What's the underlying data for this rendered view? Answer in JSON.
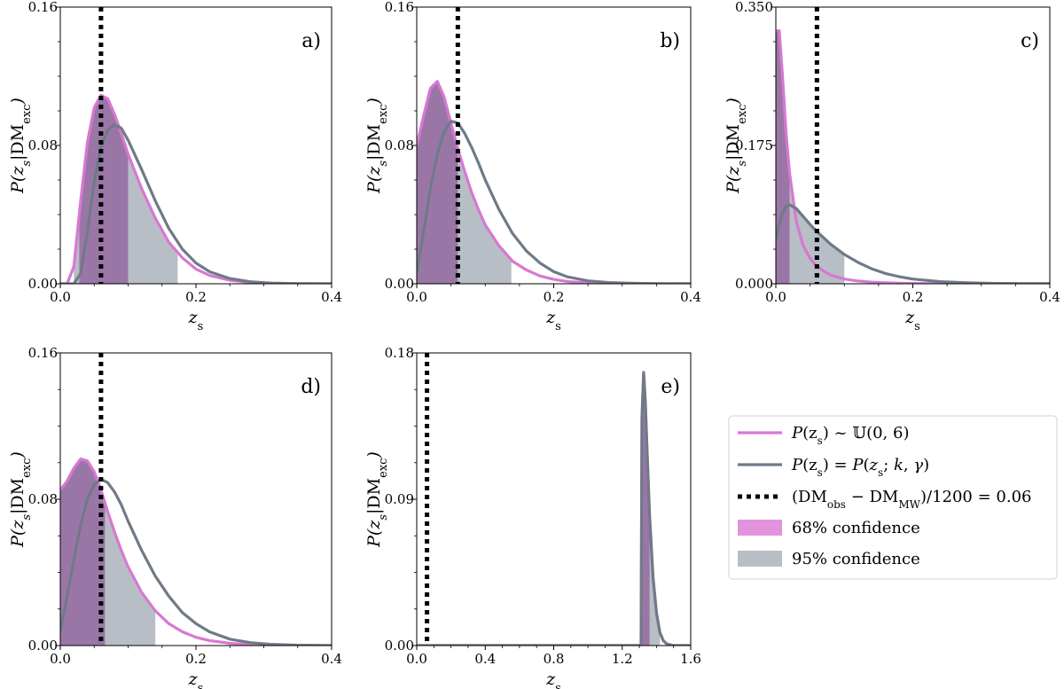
{
  "chart_data": [
    {
      "type": "area",
      "panel_label": "a)",
      "xlabel": "z_s",
      "ylabel": "P(z_s|DM_exc)",
      "xlim": [
        0,
        0.4
      ],
      "ylim": [
        0,
        0.16
      ],
      "xticks": [
        "0.0",
        "0.2",
        "0.4"
      ],
      "yticks": [
        "0.00",
        "0.08",
        "0.16"
      ],
      "vline_x": 0.06,
      "uniform_prior": {
        "x": [
          0.0,
          0.01,
          0.02,
          0.03,
          0.04,
          0.05,
          0.06,
          0.07,
          0.08,
          0.09,
          0.1,
          0.12,
          0.14,
          0.16,
          0.18,
          0.2,
          0.22,
          0.25,
          0.28,
          0.31,
          0.35,
          0.4
        ],
        "y": [
          0.0,
          0.0,
          0.01,
          0.048,
          0.082,
          0.102,
          0.109,
          0.107,
          0.098,
          0.087,
          0.075,
          0.055,
          0.038,
          0.024,
          0.015,
          0.0085,
          0.0048,
          0.002,
          0.0008,
          0.0003,
          0.0001,
          0.0
        ],
        "ci68": [
          0.028,
          0.1
        ],
        "ci95": [
          0.02,
          0.173
        ]
      },
      "fitted_prior": {
        "x": [
          0.0,
          0.01,
          0.02,
          0.03,
          0.04,
          0.05,
          0.06,
          0.07,
          0.08,
          0.09,
          0.1,
          0.12,
          0.14,
          0.16,
          0.18,
          0.2,
          0.22,
          0.25,
          0.28,
          0.31,
          0.35,
          0.4
        ],
        "y": [
          0.0,
          0.0,
          0.0,
          0.006,
          0.03,
          0.059,
          0.079,
          0.089,
          0.092,
          0.09,
          0.083,
          0.066,
          0.048,
          0.032,
          0.02,
          0.012,
          0.007,
          0.003,
          0.0012,
          0.0004,
          0.0001,
          0.0
        ]
      }
    },
    {
      "type": "area",
      "panel_label": "b)",
      "xlabel": "z_s",
      "ylabel": "P(z_s|DM_exc)",
      "xlim": [
        0,
        0.4
      ],
      "ylim": [
        0,
        0.16
      ],
      "xticks": [
        "0.0",
        "0.2",
        "0.4"
      ],
      "yticks": [
        "0.00",
        "0.08",
        "0.16"
      ],
      "vline_x": 0.06,
      "uniform_prior": {
        "x": [
          0.0,
          0.01,
          0.02,
          0.03,
          0.04,
          0.05,
          0.06,
          0.07,
          0.08,
          0.09,
          0.1,
          0.12,
          0.14,
          0.16,
          0.18,
          0.2,
          0.22,
          0.25,
          0.28,
          0.31,
          0.35,
          0.4
        ],
        "y": [
          0.08,
          0.097,
          0.113,
          0.117,
          0.108,
          0.093,
          0.078,
          0.065,
          0.053,
          0.043,
          0.034,
          0.022,
          0.013,
          0.008,
          0.0045,
          0.0025,
          0.0013,
          0.0005,
          0.0002,
          0.0001,
          0.0,
          0.0
        ],
        "ci68": [
          0.0,
          0.06
        ],
        "ci95": [
          0.0,
          0.138
        ]
      },
      "fitted_prior": {
        "x": [
          0.0,
          0.01,
          0.02,
          0.03,
          0.04,
          0.05,
          0.06,
          0.07,
          0.08,
          0.09,
          0.1,
          0.12,
          0.14,
          0.16,
          0.18,
          0.2,
          0.22,
          0.25,
          0.28,
          0.31,
          0.35,
          0.4
        ],
        "y": [
          0.006,
          0.03,
          0.055,
          0.075,
          0.088,
          0.094,
          0.093,
          0.087,
          0.079,
          0.07,
          0.06,
          0.043,
          0.029,
          0.019,
          0.012,
          0.007,
          0.004,
          0.0017,
          0.0007,
          0.0003,
          0.0001,
          0.0
        ]
      }
    },
    {
      "type": "area",
      "panel_label": "c)",
      "xlabel": "z_s",
      "ylabel": "P(z_s|DM_exc)",
      "xlim": [
        0,
        0.4
      ],
      "ylim": [
        0,
        0.35
      ],
      "xticks": [
        "0.0",
        "0.2",
        "0.4"
      ],
      "yticks": [
        "0.000",
        "0.175",
        "0.350"
      ],
      "vline_x": 0.06,
      "uniform_prior": {
        "x": [
          0.0,
          0.005,
          0.01,
          0.015,
          0.02,
          0.03,
          0.04,
          0.05,
          0.06,
          0.07,
          0.08,
          0.1,
          0.12,
          0.14,
          0.16,
          0.18,
          0.2,
          0.24,
          0.3,
          0.4
        ],
        "y": [
          0.32,
          0.32,
          0.26,
          0.19,
          0.14,
          0.078,
          0.048,
          0.032,
          0.022,
          0.016,
          0.011,
          0.006,
          0.0035,
          0.002,
          0.0012,
          0.0007,
          0.0004,
          0.0001,
          0.0,
          0.0
        ],
        "ci68": [
          0.0,
          0.02
        ],
        "ci95": [
          0.0,
          0.04
        ]
      },
      "fitted_prior": {
        "x": [
          0.0,
          0.005,
          0.01,
          0.015,
          0.02,
          0.03,
          0.04,
          0.05,
          0.06,
          0.07,
          0.08,
          0.1,
          0.12,
          0.14,
          0.16,
          0.18,
          0.2,
          0.24,
          0.28,
          0.32,
          0.36,
          0.4
        ],
        "y": [
          0.055,
          0.075,
          0.09,
          0.098,
          0.1,
          0.095,
          0.085,
          0.075,
          0.066,
          0.058,
          0.05,
          0.037,
          0.027,
          0.019,
          0.013,
          0.009,
          0.006,
          0.0027,
          0.0012,
          0.0005,
          0.0002,
          0.0001
        ],
        "ci95": [
          0.0,
          0.1
        ],
        "ci68": [
          0.0,
          0.032
        ]
      }
    },
    {
      "type": "area",
      "panel_label": "d)",
      "xlabel": "z_s",
      "ylabel": "P(z_s|DM_exc)",
      "xlim": [
        0,
        0.4
      ],
      "ylim": [
        0,
        0.16
      ],
      "xticks": [
        "0.0",
        "0.2",
        "0.4"
      ],
      "yticks": [
        "0.00",
        "0.08",
        "0.16"
      ],
      "vline_x": 0.06,
      "uniform_prior": {
        "x": [
          0.0,
          0.01,
          0.02,
          0.03,
          0.04,
          0.05,
          0.06,
          0.07,
          0.08,
          0.09,
          0.1,
          0.12,
          0.14,
          0.16,
          0.18,
          0.2,
          0.22,
          0.25,
          0.28,
          0.31,
          0.35,
          0.4
        ],
        "y": [
          0.085,
          0.09,
          0.097,
          0.102,
          0.101,
          0.095,
          0.085,
          0.073,
          0.062,
          0.052,
          0.043,
          0.029,
          0.019,
          0.012,
          0.0075,
          0.0045,
          0.0027,
          0.0012,
          0.0005,
          0.0002,
          0.0001,
          0.0
        ],
        "ci68": [
          0.0,
          0.066
        ],
        "ci95": [
          0.0,
          0.14
        ]
      },
      "fitted_prior": {
        "x": [
          0.0,
          0.01,
          0.02,
          0.03,
          0.04,
          0.05,
          0.06,
          0.07,
          0.08,
          0.09,
          0.1,
          0.12,
          0.14,
          0.16,
          0.18,
          0.2,
          0.22,
          0.25,
          0.28,
          0.31,
          0.35,
          0.4
        ],
        "y": [
          0.008,
          0.027,
          0.047,
          0.066,
          0.08,
          0.088,
          0.091,
          0.089,
          0.084,
          0.077,
          0.068,
          0.052,
          0.038,
          0.027,
          0.018,
          0.012,
          0.0075,
          0.0035,
          0.0016,
          0.0007,
          0.0002,
          0.0
        ]
      }
    },
    {
      "type": "area",
      "panel_label": "e)",
      "xlabel": "z_s",
      "ylabel": "P(z_s|DM_exc)",
      "xlim": [
        0,
        1.6
      ],
      "ylim": [
        0,
        0.18
      ],
      "xticks": [
        "0.0",
        "0.4",
        "0.8",
        "1.2",
        "1.6"
      ],
      "yticks": [
        "0.00",
        "0.09",
        "0.18"
      ],
      "vline_x": 0.06,
      "uniform_prior": {
        "x": [
          0.0,
          1.31,
          1.315,
          1.325,
          1.335,
          1.345,
          1.36,
          1.38,
          1.4,
          1.42,
          1.44,
          1.46,
          1.5,
          1.6
        ],
        "y": [
          0.0,
          0.0,
          0.14,
          0.168,
          0.15,
          0.12,
          0.08,
          0.042,
          0.02,
          0.008,
          0.003,
          0.001,
          0.0,
          0.0
        ],
        "ci68": [
          1.315,
          1.36
        ],
        "ci95": [
          1.315,
          1.42
        ]
      },
      "fitted_prior": {
        "x": [
          0.0,
          1.31,
          1.315,
          1.325,
          1.335,
          1.345,
          1.36,
          1.38,
          1.4,
          1.42,
          1.44,
          1.46,
          1.5,
          1.6
        ],
        "y": [
          0.0,
          0.0,
          0.14,
          0.168,
          0.15,
          0.12,
          0.08,
          0.042,
          0.02,
          0.008,
          0.003,
          0.001,
          0.0,
          0.0
        ]
      }
    }
  ],
  "legend": {
    "placement": "right",
    "entries": [
      {
        "key": "uniform",
        "label": "P(z_s) ~ U(0,6)"
      },
      {
        "key": "fitted",
        "label": "P(z_s) = P(z_s; k, γ)"
      },
      {
        "key": "dm",
        "label": "(DM_obs − DM_MW)/1200 = 0.06"
      },
      {
        "key": "ci68",
        "label": "68% confidence"
      },
      {
        "key": "ci95",
        "label": "95% confidence"
      }
    ]
  },
  "colors": {
    "uniform": "#d778d2",
    "fitted": "#6f7a87",
    "ci68": "#9a76a6",
    "ci95": "#b8bec6",
    "ci68_legend": "#e293dc",
    "vline": "#000000"
  }
}
